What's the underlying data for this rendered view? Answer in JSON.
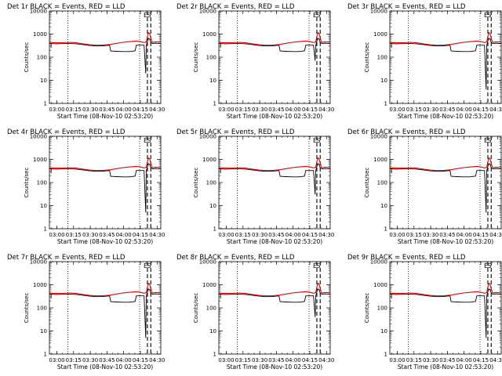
{
  "chart_data": {
    "type": "line",
    "layout": "3x3 panel grid",
    "x_tick_labels": [
      "03:00",
      "03:15",
      "03:30",
      "03:45",
      "04:00",
      "04:15",
      "04:30"
    ],
    "x_label": "Start Time (08-Nov-10 02:53:20)",
    "y_label": "Counts/sec",
    "y_scale": "log",
    "ylim": [
      1,
      10000
    ],
    "y_tick_labels": [
      "1",
      "10",
      "100",
      "1000",
      "10000"
    ],
    "xlim_minutes_after_0253": [
      0,
      100
    ],
    "legend": {
      "black": "Events",
      "red": "LLD"
    },
    "panels": [
      {
        "title": "Det 1r BLACK = Events, RED = LLD",
        "markers": [
          {
            "label": "E",
            "t": 88
          },
          {
            "label": "S",
            "t": 91
          }
        ],
        "dotted_lines": [
          16.5,
          81
        ],
        "black_dip_min": 20,
        "black_dip_t": 86.5
      },
      {
        "title": "Det 2r BLACK = Events, RED = LLD",
        "markers": [
          {
            "label": "E",
            "t": 88
          },
          {
            "label": "S",
            "t": 91
          }
        ],
        "dotted_lines": [
          16.5,
          81
        ],
        "black_dip_min": 70,
        "black_dip_t": 86.5
      },
      {
        "title": "Det 3r BLACK = Events, RED = LLD",
        "markers": [
          {
            "label": "E",
            "t": 88
          },
          {
            "label": "S",
            "t": 91
          }
        ],
        "dotted_lines": [
          16.5,
          81
        ],
        "black_dip_min": 4,
        "black_dip_t": 86.5
      },
      {
        "title": "Det 4r BLACK = Events, RED = LLD",
        "markers": [
          {
            "label": "E",
            "t": 88
          },
          {
            "label": "S",
            "t": 91
          }
        ],
        "dotted_lines": [
          16.5,
          81
        ],
        "black_dip_min": 5,
        "black_dip_t": 86.5
      },
      {
        "title": "Det 5r BLACK = Events, RED = LLD",
        "markers": [
          {
            "label": "E",
            "t": 88
          },
          {
            "label": "S",
            "t": 91
          }
        ],
        "dotted_lines": [
          16.5,
          81
        ],
        "black_dip_min": 30,
        "black_dip_t": 86.5
      },
      {
        "title": "Det 6r BLACK = Events, RED = LLD",
        "markers": [
          {
            "label": "E",
            "t": 88
          },
          {
            "label": "S",
            "t": 91
          }
        ],
        "dotted_lines": [
          16.5,
          81
        ],
        "black_dip_min": 5,
        "black_dip_t": 86.5
      },
      {
        "title": "Det 7r BLACK = Events, RED = LLD",
        "markers": [
          {
            "label": "E",
            "t": 88
          },
          {
            "label": "S",
            "t": 91
          }
        ],
        "dotted_lines": [
          16.5,
          81
        ],
        "black_dip_min": 5,
        "black_dip_t": 86.5
      },
      {
        "title": "Det 8r BLACK = Events, RED = LLD",
        "markers": [
          {
            "label": "E",
            "t": 88
          },
          {
            "label": "S",
            "t": 91
          }
        ],
        "dotted_lines": [
          16.5,
          81
        ],
        "black_dip_min": 40,
        "black_dip_t": 86.5
      },
      {
        "title": "Det 9r BLACK = Events, RED = LLD",
        "markers": [
          {
            "label": "E",
            "t": 88
          },
          {
            "label": "S",
            "t": 91
          }
        ],
        "dotted_lines": [
          16.5,
          81
        ],
        "black_dip_min": 5,
        "black_dip_t": 86.5
      }
    ],
    "red_series": {
      "name": "LLD",
      "t": [
        0,
        6,
        12,
        18,
        24,
        30,
        36,
        42,
        48,
        54,
        60,
        66,
        72,
        78,
        82,
        85,
        87,
        88,
        89,
        90,
        91,
        92,
        93,
        95,
        97,
        100
      ],
      "values": [
        430,
        420,
        425,
        440,
        420,
        380,
        345,
        330,
        335,
        355,
        395,
        440,
        470,
        500,
        470,
        430,
        450,
        800,
        1150,
        1050,
        700,
        460,
        440,
        460,
        455,
        440
      ]
    },
    "black_series": {
      "name": "Events",
      "t": [
        0,
        6,
        12,
        18,
        24,
        30,
        36,
        42,
        48,
        54,
        55,
        60,
        66,
        72,
        77,
        78,
        82,
        85,
        86.5,
        87,
        88,
        89,
        90,
        91,
        92,
        93,
        95,
        100
      ],
      "values": [
        390,
        380,
        385,
        395,
        380,
        350,
        320,
        305,
        310,
        330,
        185,
        180,
        175,
        175,
        190,
        330,
        330,
        330,
        "DIP",
        320,
        500,
        650,
        600,
        440,
        400,
        390,
        400,
        390
      ]
    }
  },
  "colors": {
    "events": "#000000",
    "lld": "#e00000",
    "background": "#ffffff"
  }
}
